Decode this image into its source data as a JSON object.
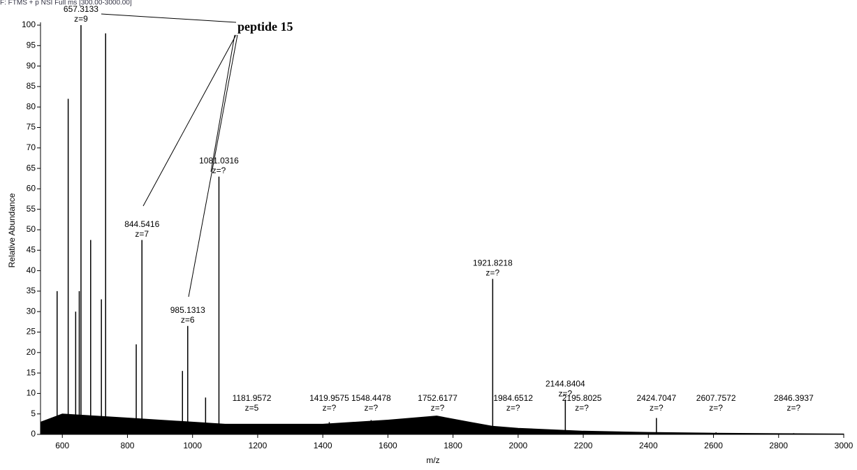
{
  "chart_data": {
    "type": "spectrum",
    "title": "F: FTMS + p NSI Full ms [300.00-3000.00]",
    "x_label": "m/z",
    "y_label": "Relative Abundance",
    "annotation": "peptide 15",
    "xlim": [
      533,
      3000
    ],
    "xticks": [
      600,
      800,
      1000,
      1200,
      1400,
      1600,
      1800,
      2000,
      2200,
      2400,
      2600,
      2800,
      3000
    ],
    "ylim": [
      0,
      100
    ],
    "yticks": [
      0,
      5,
      10,
      15,
      20,
      25,
      30,
      35,
      40,
      45,
      50,
      55,
      60,
      65,
      70,
      75,
      80,
      85,
      90,
      95,
      100
    ],
    "color": "#000000",
    "peaks": {
      "x": [
        584,
        618,
        641,
        652,
        657.3133,
        687,
        720,
        733,
        827,
        844.5416,
        969,
        985.1313,
        1040,
        1081.0316,
        1181.9572,
        1419.9575,
        1548.4478,
        1752.6177,
        1921.8218,
        1984.6512,
        2144.8404,
        2195.8025,
        2424.7047,
        2607.7572,
        2846.3937
      ],
      "values": [
        35,
        82,
        30,
        35,
        100,
        47.5,
        33,
        98,
        22,
        47.5,
        15.5,
        26.5,
        9,
        63,
        2.5,
        3,
        3.5,
        4.5,
        38,
        1.5,
        8.5,
        0.8,
        4,
        0.5,
        0.3
      ],
      "z": [
        null,
        null,
        null,
        null,
        "z=9",
        null,
        null,
        null,
        null,
        "z=7",
        null,
        "z=6",
        null,
        "z=?",
        "z=5",
        "z=?",
        "z=?",
        "z=?",
        "z=?",
        "z=?",
        "z=?",
        "z=?",
        "z=?",
        "z=?",
        "z=?"
      ]
    },
    "baseline": {
      "x": [
        533,
        600,
        700,
        800,
        900,
        1000,
        1100,
        1200,
        1400,
        1600,
        1750,
        1850,
        1920,
        2000,
        2200,
        2400,
        2600,
        2800,
        3000
      ],
      "values": [
        3,
        5,
        4.5,
        4,
        3.5,
        3,
        2.5,
        2.5,
        2.5,
        3.5,
        4.5,
        3,
        2,
        1.5,
        0.8,
        0.5,
        0.3,
        0.2,
        0.1
      ]
    }
  }
}
